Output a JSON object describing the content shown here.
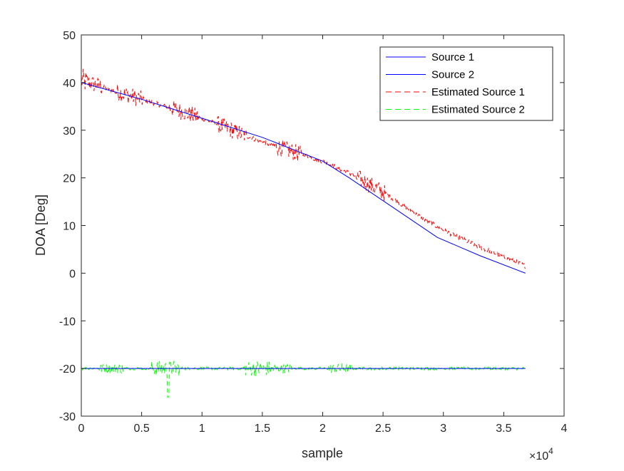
{
  "chart_data": {
    "type": "line",
    "title": "",
    "xlabel": "sample",
    "ylabel": "DOA [Deg]",
    "xlim": [
      0,
      4
    ],
    "ylim": [
      -30,
      50
    ],
    "x_multiplier_label": "×10",
    "x_multiplier_exp": "4",
    "xticks": [
      "0",
      "0.5",
      "1",
      "1.5",
      "2",
      "2.5",
      "3",
      "3.5",
      "4"
    ],
    "yticks": [
      "-30",
      "-20",
      "-10",
      "0",
      "10",
      "20",
      "30",
      "40",
      "50"
    ],
    "grid": false,
    "legend_position": "top-right",
    "series": [
      {
        "name": "Source 1",
        "color": "#0000ff",
        "style": "solid",
        "x": [
          0,
          0.5,
          1.0,
          1.5,
          2.0,
          2.22,
          2.6,
          2.95,
          3.3,
          3.68
        ],
        "y": [
          40,
          36.5,
          32.5,
          28.5,
          23.5,
          20,
          13.5,
          7.5,
          3.7,
          0
        ]
      },
      {
        "name": "Source 2",
        "color": "#0000ff",
        "style": "solid",
        "x": [
          0,
          3.68
        ],
        "y": [
          -20,
          -20
        ]
      },
      {
        "name": "Estimated Source 1",
        "color": "#ff0000",
        "style": "dashed",
        "x": [
          0,
          0.3,
          0.5,
          0.8,
          1.0,
          1.25,
          1.5,
          1.75,
          2.0,
          2.22,
          2.5,
          2.8,
          3.0,
          3.3,
          3.68
        ],
        "y": [
          40.5,
          38,
          36.5,
          34.2,
          32.5,
          30,
          27.5,
          25.5,
          23.5,
          21,
          17,
          12,
          9,
          5.5,
          1.5
        ]
      },
      {
        "name": "Estimated Source 2",
        "color": "#00ff00",
        "style": "dashed",
        "x": [
          0,
          3.68
        ],
        "y": [
          -20,
          -20
        ]
      }
    ]
  }
}
